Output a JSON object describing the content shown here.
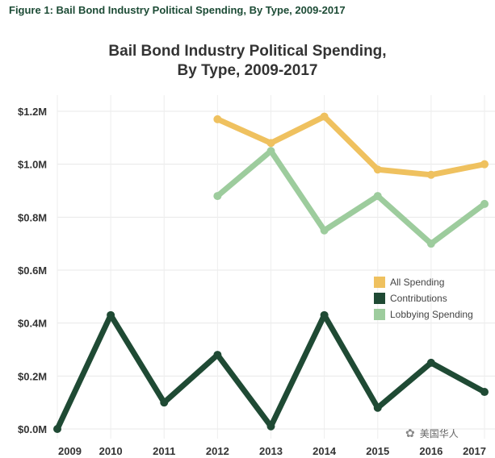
{
  "figure_caption": "Figure 1: Bail Bond Industry Political Spending, By Type, 2009-2017",
  "watermark": "美国华人",
  "chart_data": {
    "type": "line",
    "title": "Bail Bond Industry Political Spending,",
    "subtitle": "By Type, 2009-2017",
    "xlabel": "",
    "ylabel": "",
    "x": [
      2009,
      2010,
      2011,
      2012,
      2013,
      2014,
      2015,
      2016,
      2017
    ],
    "x_tick_labels": [
      "2009",
      "2010",
      "2011",
      "2012",
      "2013",
      "2014",
      "2015",
      "2016",
      "2017"
    ],
    "y_tick_labels": [
      "$0.0M",
      "$0.2M",
      "$0.4M",
      "$0.6M",
      "$0.8M",
      "$1.0M",
      "$1.2M"
    ],
    "ylim": [
      0,
      1.2
    ],
    "grid": true,
    "legend_position": "right",
    "series": [
      {
        "name": "All Spending",
        "color": "#efc15f",
        "values": [
          null,
          null,
          null,
          1.17,
          1.08,
          1.18,
          0.98,
          0.96,
          1.0
        ]
      },
      {
        "name": "Contributions",
        "color": "#1f4a34",
        "values": [
          0.0,
          0.43,
          0.1,
          0.28,
          0.01,
          0.43,
          0.08,
          0.25,
          0.14
        ]
      },
      {
        "name": "Lobbying Spending",
        "color": "#9dcc9d",
        "values": [
          null,
          null,
          null,
          0.88,
          1.05,
          0.75,
          0.88,
          0.7,
          0.85
        ]
      }
    ]
  }
}
